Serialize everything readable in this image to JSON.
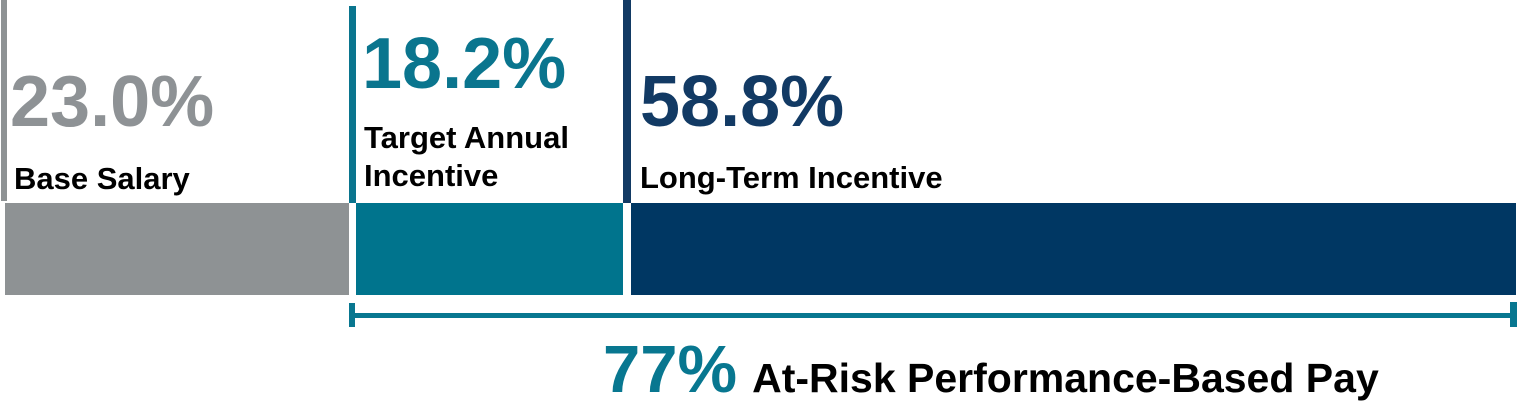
{
  "chart_data": {
    "type": "bar",
    "orientation": "horizontal-stacked",
    "title": "",
    "legend": "none",
    "axes": "none",
    "units": "%",
    "total": 100,
    "categories": [
      "Base Salary",
      "Target Annual Incentive",
      "Long-Term Incentive"
    ],
    "values": [
      23.0,
      18.2,
      58.8
    ],
    "value_labels": [
      "23.0%",
      "18.2%",
      "58.8%"
    ],
    "colors": [
      "#8E9294",
      "#00748D",
      "#003763"
    ],
    "text_colors": [
      "#8E9295",
      "#0A758E",
      "#123A64"
    ],
    "annotation": {
      "value": 77,
      "value_label": "77%",
      "label": "At-Risk Performance-Based Pay",
      "spans_categories": [
        "Target Annual Incentive",
        "Long-Term Incentive"
      ],
      "color": "#087790"
    }
  }
}
